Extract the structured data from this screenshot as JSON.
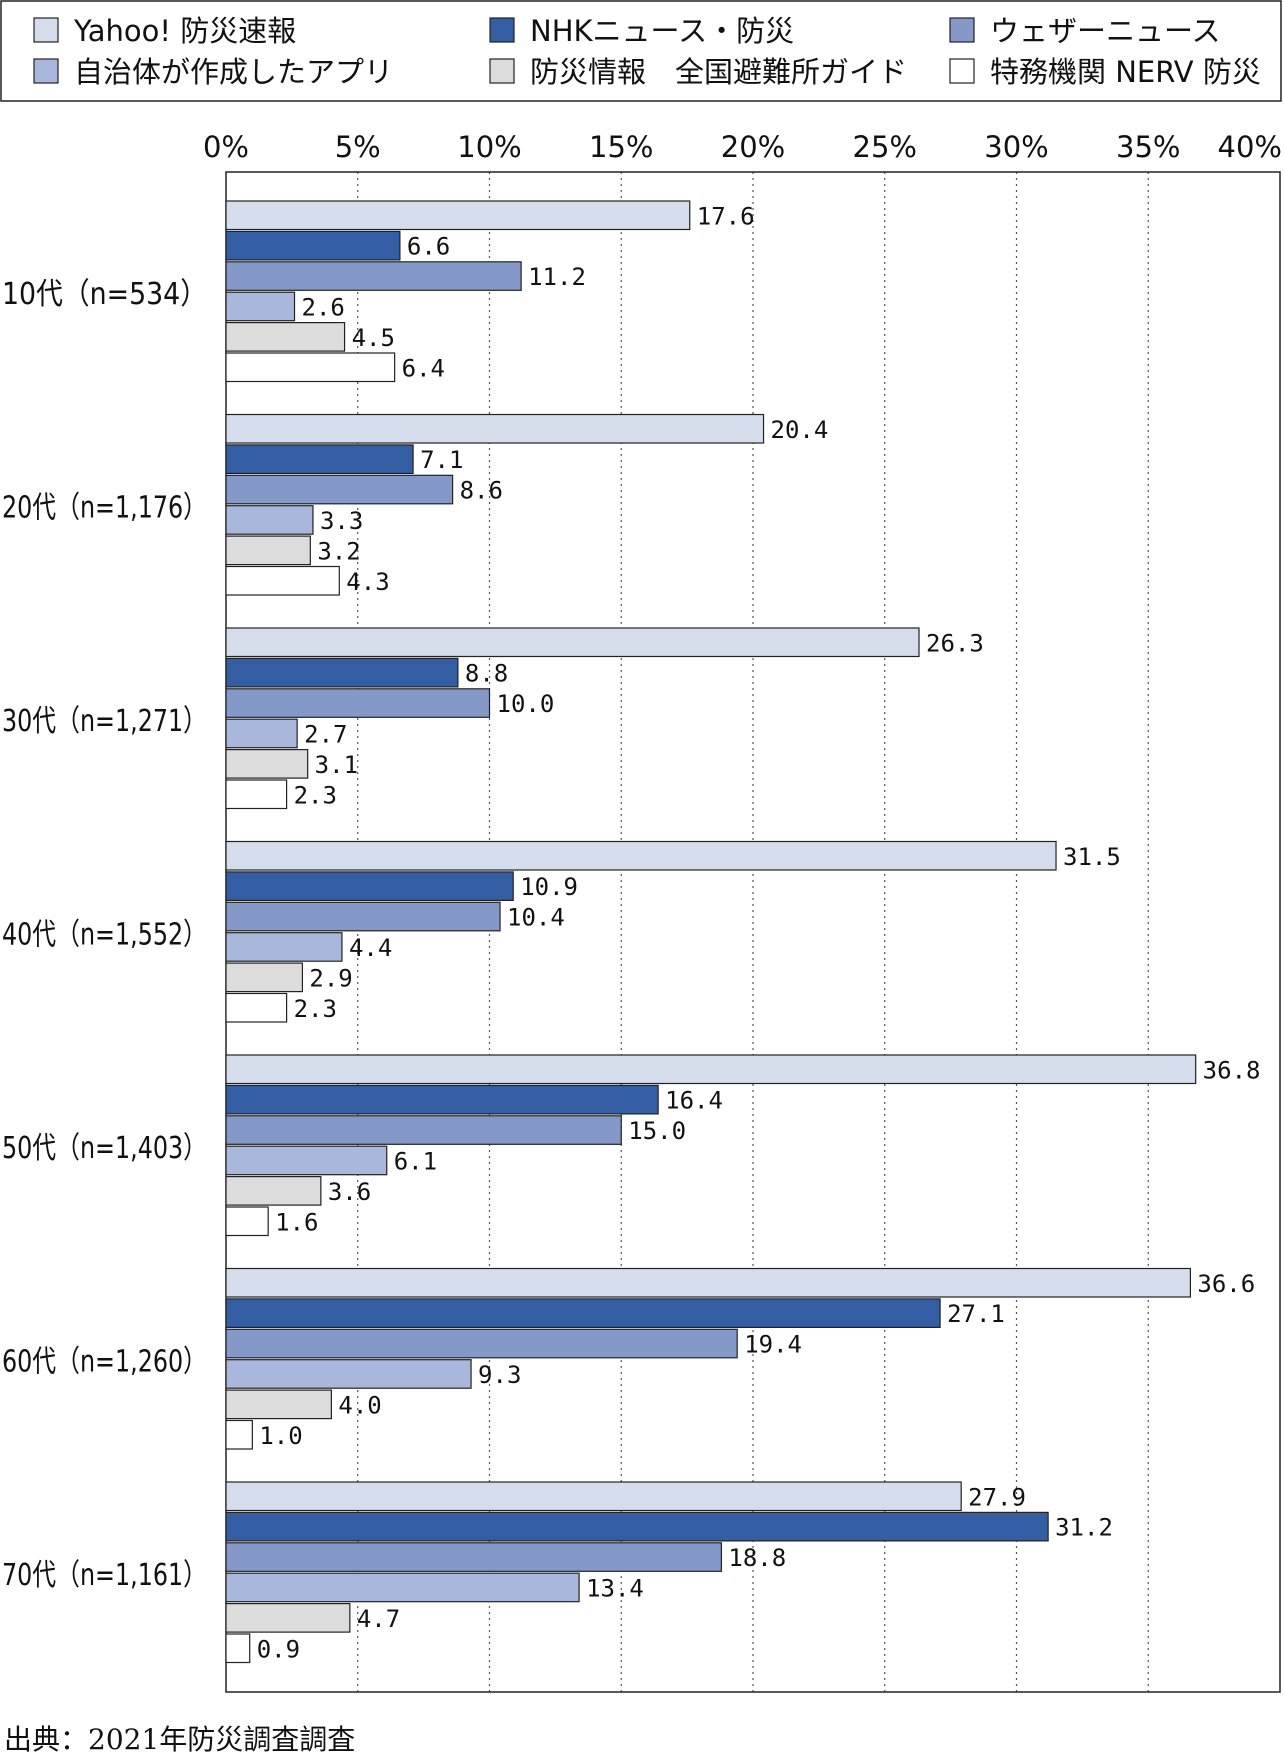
{
  "chart_data": {
    "type": "bar",
    "orientation": "horizontal",
    "categories": [
      "10代（n=534）",
      "20代（n=1,176）",
      "30代（n=1,271）",
      "40代（n=1,552）",
      "50代（n=1,403）",
      "60代（n=1,260）",
      "70代（n=1,161）"
    ],
    "series": [
      {
        "name": "Yahoo! 防災速報",
        "color": "#d5dcec",
        "values": [
          17.6,
          20.4,
          26.3,
          31.5,
          36.8,
          36.6,
          27.9
        ],
        "labels": [
          "17.6",
          "20.4",
          "26.3",
          "31.5",
          "36.8",
          "36.6",
          "27.9"
        ]
      },
      {
        "name": "NHKニュース・防災",
        "color": "#345ea3",
        "values": [
          6.6,
          7.1,
          8.8,
          10.9,
          16.4,
          27.1,
          31.2
        ],
        "labels": [
          "6.6",
          "7.1",
          "8.8",
          "10.9",
          "16.4",
          "27.1",
          "31.2"
        ]
      },
      {
        "name": "ウェザーニュース",
        "color": "#8599c8",
        "values": [
          11.2,
          8.6,
          10.0,
          10.4,
          15.0,
          19.4,
          18.8
        ],
        "labels": [
          "11.2",
          "8.6",
          "10.0",
          "10.4",
          "15.0",
          "19.4",
          "18.8"
        ]
      },
      {
        "name": "自治体が作成したアプリ",
        "color": "#a9b7dd",
        "values": [
          2.6,
          3.3,
          2.7,
          4.4,
          6.1,
          9.3,
          13.4
        ],
        "labels": [
          "2.6",
          "3.3",
          "2.7",
          "4.4",
          "6.1",
          "9.3",
          "13.4"
        ]
      },
      {
        "name": "防災情報　全国避難所ガイド",
        "color": "#dcdcdc",
        "values": [
          4.5,
          3.2,
          3.1,
          2.9,
          3.6,
          4.0,
          4.7
        ],
        "labels": [
          "4.5",
          "3.2",
          "3.1",
          "2.9",
          "3.6",
          "4.0",
          "4.7"
        ]
      },
      {
        "name": "特務機関 NERV 防災",
        "color": "#ffffff",
        "values": [
          6.4,
          4.3,
          2.3,
          2.3,
          1.6,
          1.0,
          0.9
        ],
        "labels": [
          "6.4",
          "4.3",
          "2.3",
          "2.3",
          "1.6",
          "1.0",
          "0.9"
        ]
      }
    ],
    "xlim": [
      0,
      40
    ],
    "ticks": [
      0,
      5,
      10,
      15,
      20,
      25,
      30,
      35,
      40
    ],
    "tick_labels": [
      "0%",
      "5%",
      "10%",
      "15%",
      "20%",
      "25%",
      "30%",
      "35%",
      "40%"
    ],
    "grid": "vertical dotted",
    "legend": "top"
  },
  "source": "出典：2021年防災調査調査"
}
